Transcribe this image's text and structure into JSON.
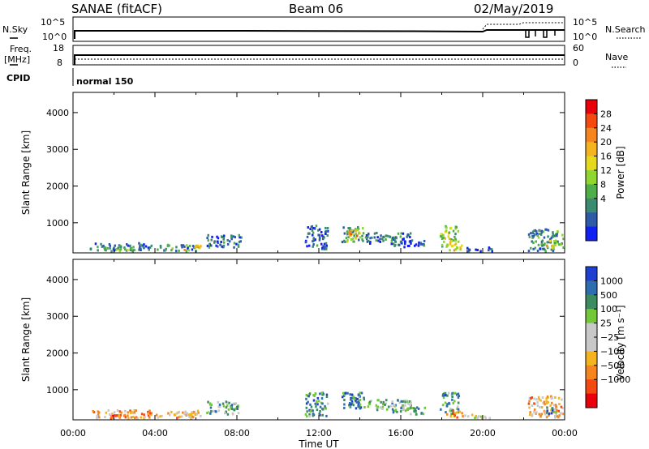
{
  "header": {
    "title": "SANAE (fitACF)",
    "beam": "Beam 06",
    "date": "02/May/2019"
  },
  "panels": {
    "nsky_label": "N.Sky",
    "nsearch_label": "N.Search",
    "nsky_ticks": [
      "10^5",
      "10^0"
    ],
    "nsearch_ticks": [
      "10^5",
      "10^0"
    ],
    "freq_label_line1": "Freq.",
    "freq_label_line2": "[MHz]",
    "freq_ticks": [
      "18",
      "8"
    ],
    "nave_label": "Nave",
    "nave_ticks": [
      "60",
      "0"
    ],
    "cpid_label": "CPID",
    "cpid_value": "normal 150"
  },
  "chart_data": [
    {
      "type": "heatmap",
      "name": "power",
      "ylabel": "Slant Range [km]",
      "xlabel": "",
      "yticks": [
        1000,
        2000,
        3000,
        4000
      ],
      "ylim": [
        180,
        4550
      ],
      "xlim_hours": [
        0,
        24
      ],
      "colorbar": {
        "label": "Power [dB]",
        "ticks": [
          "28",
          "24",
          "20",
          "16",
          "12",
          "8",
          "4"
        ],
        "colors": [
          "#e8000b",
          "#f44a12",
          "#f5851e",
          "#f4b41f",
          "#e6d81f",
          "#8fd630",
          "#4fae4a",
          "#3a8b6f",
          "#2e5aa8",
          "#1020f0"
        ]
      },
      "clusters": [
        {
          "t": [
            0.8,
            3.8
          ],
          "r": [
            200,
            420
          ],
          "level": 0.2
        },
        {
          "t": [
            1.8,
            3.2
          ],
          "r": [
            200,
            320
          ],
          "level": 0.35
        },
        {
          "t": [
            4.0,
            6.0
          ],
          "r": [
            200,
            380
          ],
          "level": 0.25
        },
        {
          "t": [
            5.4,
            6.2
          ],
          "r": [
            220,
            400
          ],
          "level": 0.55
        },
        {
          "t": [
            6.5,
            8.2
          ],
          "r": [
            300,
            650
          ],
          "level": 0.2
        },
        {
          "t": [
            11.3,
            12.4
          ],
          "r": [
            250,
            900
          ],
          "level": 0.15
        },
        {
          "t": [
            13.1,
            14.2
          ],
          "r": [
            450,
            900
          ],
          "level": 0.35
        },
        {
          "t": [
            13.4,
            13.9
          ],
          "r": [
            500,
            800
          ],
          "level": 0.65
        },
        {
          "t": [
            14.2,
            16.5
          ],
          "r": [
            400,
            700
          ],
          "level": 0.2
        },
        {
          "t": [
            15.5,
            17.2
          ],
          "r": [
            300,
            500
          ],
          "level": 0.15
        },
        {
          "t": [
            17.9,
            18.8
          ],
          "r": [
            300,
            900
          ],
          "level": 0.45
        },
        {
          "t": [
            18.2,
            19.0
          ],
          "r": [
            220,
            420
          ],
          "level": 0.6
        },
        {
          "t": [
            19.0,
            20.5
          ],
          "r": [
            200,
            300
          ],
          "level": 0.1
        },
        {
          "t": [
            22.2,
            23.9
          ],
          "r": [
            200,
            800
          ],
          "level": 0.25
        },
        {
          "t": [
            23.0,
            23.6
          ],
          "r": [
            300,
            500
          ],
          "level": 0.6
        }
      ]
    },
    {
      "type": "heatmap",
      "name": "velocity",
      "ylabel": "Slant Range [km]",
      "xlabel": "Time UT",
      "xticks": [
        "00:00",
        "04:00",
        "08:00",
        "12:00",
        "16:00",
        "20:00",
        "00:00"
      ],
      "xtick_hours": [
        0,
        4,
        8,
        12,
        16,
        20,
        24
      ],
      "yticks": [
        1000,
        2000,
        3000,
        4000
      ],
      "ylim": [
        180,
        4550
      ],
      "xlim_hours": [
        0,
        24
      ],
      "colorbar": {
        "label": "Velocity [m s⁻¹]",
        "ticks": [
          "1000",
          "500",
          "100",
          "25",
          "−25",
          "−100",
          "−500",
          "−1000"
        ],
        "colors": [
          "#1f3fd0",
          "#2f6db0",
          "#3d8c60",
          "#72c83a",
          "#c8c8c8",
          "#c8c8c8",
          "#f4b41f",
          "#f5851e",
          "#f44a12",
          "#e8000b"
        ]
      },
      "clusters": [
        {
          "t": [
            0.8,
            3.8
          ],
          "r": [
            200,
            420
          ],
          "level": 0.3
        },
        {
          "t": [
            1.8,
            3.2
          ],
          "r": [
            200,
            320
          ],
          "level": 0.25
        },
        {
          "t": [
            4.0,
            6.0
          ],
          "r": [
            200,
            380
          ],
          "level": 0.35
        },
        {
          "t": [
            5.4,
            6.2
          ],
          "r": [
            220,
            400
          ],
          "level": 0.4
        },
        {
          "t": [
            6.5,
            8.2
          ],
          "r": [
            300,
            650
          ],
          "level": 0.7
        },
        {
          "t": [
            11.3,
            12.4
          ],
          "r": [
            250,
            900
          ],
          "level": 0.75
        },
        {
          "t": [
            13.1,
            14.2
          ],
          "r": [
            450,
            900
          ],
          "level": 0.8
        },
        {
          "t": [
            13.4,
            13.9
          ],
          "r": [
            500,
            800
          ],
          "level": 0.85
        },
        {
          "t": [
            14.2,
            16.5
          ],
          "r": [
            400,
            700
          ],
          "level": 0.65
        },
        {
          "t": [
            15.5,
            17.2
          ],
          "r": [
            300,
            500
          ],
          "level": 0.7
        },
        {
          "t": [
            17.9,
            18.8
          ],
          "r": [
            300,
            900
          ],
          "level": 0.75
        },
        {
          "t": [
            18.2,
            19.0
          ],
          "r": [
            220,
            420
          ],
          "level": 0.3
        },
        {
          "t": [
            19.0,
            20.5
          ],
          "r": [
            200,
            300
          ],
          "level": 0.5
        },
        {
          "t": [
            22.2,
            23.9
          ],
          "r": [
            200,
            800
          ],
          "level": 0.35
        },
        {
          "t": [
            23.0,
            23.6
          ],
          "r": [
            300,
            500
          ],
          "level": 0.8
        }
      ]
    }
  ]
}
